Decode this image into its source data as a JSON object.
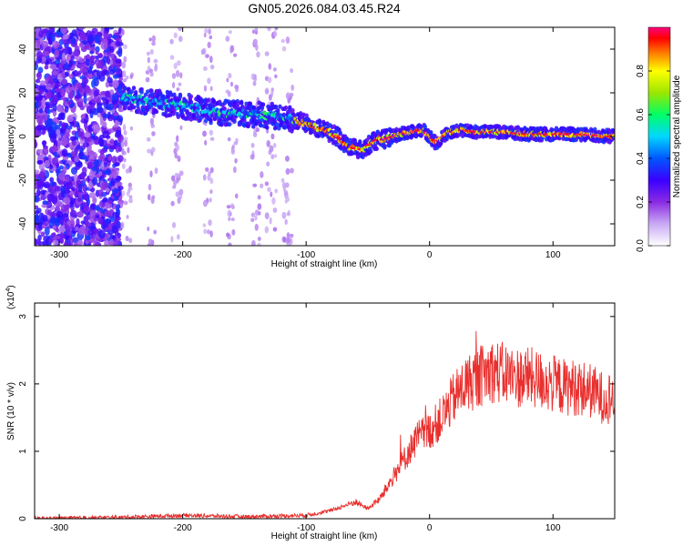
{
  "title": "GN05.2026.084.03.45.R24",
  "chart_data": [
    {
      "type": "heatmap",
      "xlabel": "Height of straight line (km)",
      "ylabel": "Frequency (Hz)",
      "xlim": [
        -320,
        150
      ],
      "ylim": [
        -50,
        50
      ],
      "xticks": [
        -300,
        -200,
        -100,
        0,
        100
      ],
      "yticks": [
        -40,
        -20,
        0,
        20,
        40
      ],
      "colorbar": {
        "label": "Normalized spectral amplitude",
        "range": [
          0.0,
          1.0
        ],
        "ticks": [
          0.0,
          0.2,
          0.4,
          0.6,
          0.8
        ],
        "colormap": [
          "#ffffff",
          "#c9a9f5",
          "#8a2be2",
          "#3a00ff",
          "#0057ff",
          "#00d7ff",
          "#00ff66",
          "#9be600",
          "#ffff00",
          "#ff8000",
          "#ff0000",
          "#ff0080"
        ]
      },
      "ridge": {
        "height_km": [
          -250,
          -230,
          -200,
          -170,
          -140,
          -120,
          -100,
          -85,
          -75,
          -65,
          -55,
          -45,
          -35,
          -25,
          -15,
          -5,
          5,
          15,
          25,
          40,
          60,
          80,
          100,
          120,
          150
        ],
        "frequency_hz": [
          18,
          16,
          14,
          11,
          10,
          9,
          6,
          3,
          0,
          -5,
          -6,
          -2,
          -1,
          1,
          2,
          3,
          -3,
          2,
          3,
          2,
          2,
          1,
          1,
          1,
          0
        ]
      },
      "noise_region_km": [
        -320,
        -250
      ]
    },
    {
      "type": "line",
      "xlabel": "Height of straight line (km)",
      "ylabel": "SNR (10 * v/v)",
      "multiplier_label": "(x10",
      "multiplier_exponent": "4",
      "xlim": [
        -320,
        150
      ],
      "ylim": [
        0,
        3.2
      ],
      "xticks": [
        -300,
        -200,
        -100,
        0,
        100
      ],
      "yticks": [
        0,
        1,
        2,
        3
      ],
      "series": [
        {
          "name": "SNR",
          "color": "#e8302e",
          "x": [
            -320,
            -250,
            -200,
            -150,
            -100,
            -80,
            -60,
            -50,
            -40,
            -30,
            -20,
            -10,
            0,
            10,
            20,
            30,
            40,
            50,
            60,
            70,
            80,
            90,
            100,
            110,
            120,
            130,
            140,
            150
          ],
          "y": [
            0.0,
            0.02,
            0.05,
            0.03,
            0.05,
            0.12,
            0.25,
            0.15,
            0.3,
            0.6,
            0.9,
            1.2,
            1.3,
            1.5,
            1.8,
            2.0,
            2.1,
            2.2,
            2.15,
            2.1,
            2.1,
            2.05,
            2.0,
            1.95,
            1.95,
            1.9,
            1.8,
            1.8
          ]
        }
      ]
    }
  ]
}
